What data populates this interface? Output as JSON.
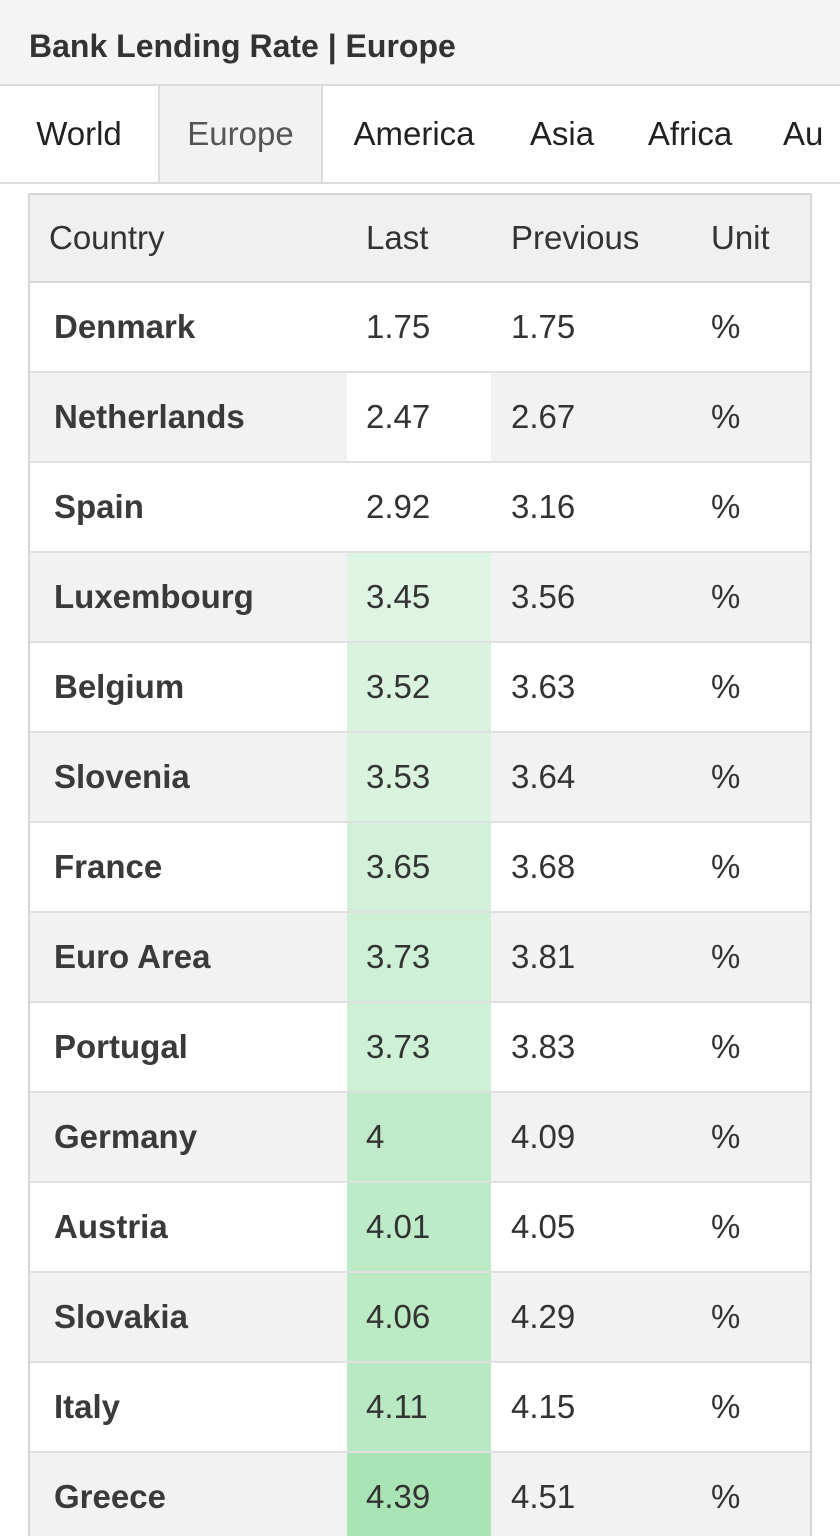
{
  "header": {
    "title": "Bank Lending Rate | Europe"
  },
  "tabs": [
    {
      "label": "World",
      "active": false
    },
    {
      "label": "Europe",
      "active": true
    },
    {
      "label": "America",
      "active": false
    },
    {
      "label": "Asia",
      "active": false
    },
    {
      "label": "Africa",
      "active": false
    },
    {
      "label": "Au",
      "active": false
    }
  ],
  "table": {
    "columns": [
      "Country",
      "Last",
      "Previous",
      "Unit"
    ],
    "rows": [
      {
        "country": "Denmark",
        "last": "1.75",
        "previous": "1.75",
        "unit": "%"
      },
      {
        "country": "Netherlands",
        "last": "2.47",
        "previous": "2.67",
        "unit": "%"
      },
      {
        "country": "Spain",
        "last": "2.92",
        "previous": "3.16",
        "unit": "%"
      },
      {
        "country": "Luxembourg",
        "last": "3.45",
        "previous": "3.56",
        "unit": "%"
      },
      {
        "country": "Belgium",
        "last": "3.52",
        "previous": "3.63",
        "unit": "%"
      },
      {
        "country": "Slovenia",
        "last": "3.53",
        "previous": "3.64",
        "unit": "%"
      },
      {
        "country": "France",
        "last": "3.65",
        "previous": "3.68",
        "unit": "%"
      },
      {
        "country": "Euro Area",
        "last": "3.73",
        "previous": "3.81",
        "unit": "%"
      },
      {
        "country": "Portugal",
        "last": "3.73",
        "previous": "3.83",
        "unit": "%"
      },
      {
        "country": "Germany",
        "last": "4",
        "previous": "4.09",
        "unit": "%"
      },
      {
        "country": "Austria",
        "last": "4.01",
        "previous": "4.05",
        "unit": "%"
      },
      {
        "country": "Slovakia",
        "last": "4.06",
        "previous": "4.29",
        "unit": "%"
      },
      {
        "country": "Italy",
        "last": "4.11",
        "previous": "4.15",
        "unit": "%"
      },
      {
        "country": "Greece",
        "last": "4.39",
        "previous": "4.51",
        "unit": "%"
      }
    ]
  },
  "colors": {
    "heat_low": "#ffffff",
    "heat_high": "#a9e4b5",
    "row_alt": "#f2f2f2",
    "header_bg": "#f4f4f4"
  }
}
